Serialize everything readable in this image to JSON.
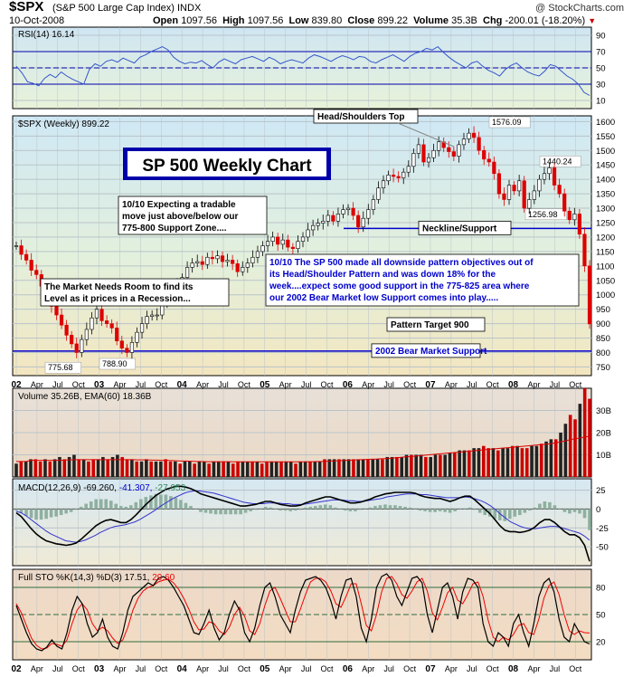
{
  "header": {
    "symbol": "$SPX",
    "name": "(S&P 500 Large Cap Index) INDX",
    "date": "10-Oct-2008",
    "open_label": "Open",
    "open": "1097.56",
    "high_label": "High",
    "high": "1097.56",
    "low_label": "Low",
    "low": "839.80",
    "close_label": "Close",
    "close": "899.22",
    "volume_label": "Volume",
    "volume": "35.3B",
    "chg_label": "Chg",
    "chg": "-200.01 (-18.20%)",
    "brand": "@ StockCharts.com",
    "down_color": "#cc0000"
  },
  "chart_data": [
    {
      "panel": "rsi",
      "type": "line",
      "title": "RSI(14) 16.14",
      "y_ticks": [
        10,
        30,
        50,
        70,
        90
      ],
      "ylim": [
        0,
        100
      ],
      "reference_lines": [
        30,
        50,
        70
      ],
      "series": [
        {
          "values": [
            52,
            44,
            33,
            31,
            28,
            37,
            42,
            38,
            45,
            40,
            36,
            33,
            30,
            48,
            55,
            52,
            58,
            60,
            57,
            62,
            59,
            56,
            63,
            66,
            70,
            73,
            76,
            72,
            63,
            58,
            55,
            57,
            56,
            59,
            54,
            50,
            57,
            61,
            58,
            55,
            60,
            62,
            64,
            61,
            58,
            63,
            60,
            55,
            58,
            60,
            58,
            56,
            62,
            66,
            64,
            61,
            58,
            62,
            65,
            63,
            60,
            64,
            63,
            58,
            56,
            60,
            63,
            66,
            62,
            58,
            64,
            68,
            70,
            74,
            72,
            76,
            69,
            63,
            58,
            54,
            50,
            56,
            58,
            52,
            47,
            44,
            40,
            48,
            53,
            56,
            50,
            45,
            42,
            40,
            46,
            54,
            52,
            46,
            40,
            36,
            30,
            20,
            16.14
          ]
        }
      ],
      "color": "#3355cc"
    },
    {
      "panel": "price",
      "type": "candlestick",
      "title": "$SPX (Weekly) 899.22",
      "y_ticks": [
        750,
        800,
        850,
        900,
        950,
        1000,
        1050,
        1100,
        1150,
        1200,
        1250,
        1300,
        1350,
        1400,
        1450,
        1500,
        1550,
        1600
      ],
      "ylim": [
        720,
        1620
      ],
      "close": [
        1170,
        1140,
        1120,
        1085,
        1070,
        1030,
        990,
        960,
        930,
        895,
        860,
        830,
        800,
        845,
        880,
        920,
        950,
        910,
        900,
        885,
        840,
        815,
        800,
        835,
        870,
        900,
        925,
        930,
        930,
        975,
        1000,
        1030,
        1040,
        1060,
        1095,
        1110,
        1115,
        1105,
        1130,
        1125,
        1135,
        1115,
        1120,
        1108,
        1080,
        1095,
        1110,
        1130,
        1150,
        1170,
        1185,
        1200,
        1175,
        1190,
        1165,
        1160,
        1185,
        1200,
        1225,
        1240,
        1248,
        1255,
        1275,
        1255,
        1280,
        1295,
        1300,
        1275,
        1235,
        1265,
        1295,
        1330,
        1370,
        1395,
        1415,
        1410,
        1405,
        1425,
        1445,
        1490,
        1520,
        1460,
        1475,
        1500,
        1530,
        1510,
        1496,
        1480,
        1520,
        1540,
        1560,
        1545,
        1500,
        1470,
        1460,
        1420,
        1350,
        1330,
        1380,
        1360,
        1395,
        1300,
        1330,
        1360,
        1400,
        1420,
        1440,
        1380,
        1350,
        1290,
        1260,
        1280,
        1210,
        1100,
        899.22
      ],
      "annotations_points": [
        {
          "text": "775.68",
          "value": 775.68
        },
        {
          "text": "788.90",
          "value": 788.9
        },
        {
          "text": "1576.09",
          "value": 1576.09
        },
        {
          "text": "1440.24",
          "value": 1440.24
        },
        {
          "text": "1256.98",
          "value": 1256.98
        }
      ],
      "reference_lines": [
        {
          "label": "Neckline/Support",
          "value": 1230,
          "color": "#0000cc"
        },
        {
          "label": "2002 Bear Market Support",
          "value": 805,
          "color": "#0000cc"
        }
      ],
      "annotations": {
        "chart_title": "SP 500 Weekly Chart",
        "head_shoulders": "Head/Shoulders Top",
        "note1_line1": "10/10  Expecting a tradable",
        "note1_line2": "move just above/below our",
        "note1_line3": "775-800 Support Zone....",
        "note2_line1": "The Market Needs Room to find its",
        "note2_line2": "Level as it prices in a Recession...",
        "note3_line1": "10/10  The SP 500 made all downside pattern objectives out of",
        "note3_line2": "its Head/Shoulder Pattern and was down 18% for the",
        "note3_line3": "week....expect some good support in the 775-825 area where",
        "note3_line4": "our 2002 Bear Market low Support comes into play.....",
        "pattern_target": "Pattern Target 900"
      },
      "up_color": "#000000",
      "down_color": "#dd0000"
    },
    {
      "panel": "volume",
      "type": "bar",
      "title": "Volume 35.26B, EMA(60) 18.36B",
      "y_ticks": [
        "10B",
        "20B",
        "30B"
      ],
      "y_tick_values": [
        10,
        20,
        30
      ],
      "ylim": [
        0,
        40
      ],
      "values": [
        6,
        7,
        7,
        8,
        8,
        7,
        8,
        7,
        8,
        9,
        8,
        9,
        10,
        8,
        8,
        7,
        8,
        8,
        9,
        8,
        9,
        10,
        9,
        8,
        8,
        7,
        7,
        8,
        7,
        7,
        7,
        8,
        7,
        7,
        6,
        7,
        7,
        6,
        7,
        7,
        6,
        7,
        7,
        7,
        7,
        6,
        7,
        7,
        7,
        7,
        7,
        6,
        7,
        7,
        7,
        7,
        7,
        7,
        6,
        7,
        7,
        7,
        7,
        7,
        8,
        8,
        8,
        8,
        8,
        8,
        8,
        8,
        8,
        8,
        8,
        8,
        8,
        9,
        9,
        9,
        9,
        10,
        10,
        10,
        10,
        9,
        9,
        10,
        10,
        10,
        11,
        11,
        12,
        12,
        12,
        13,
        13,
        14,
        13,
        13,
        12,
        13,
        13,
        14,
        14,
        13,
        13,
        14,
        14,
        15,
        16,
        17,
        17,
        20,
        24,
        28,
        26,
        33,
        40,
        35.26
      ],
      "ema": [
        7,
        7,
        7,
        7.5,
        7.5,
        7.5,
        7.5,
        7.5,
        7.5,
        7.5,
        7.6,
        7.7,
        7.8,
        7.8,
        7.8,
        7.8,
        7.8,
        7.8,
        7.8,
        7.8,
        7.8,
        7.8,
        7.8,
        7.8,
        7.8,
        7.7,
        7.7,
        7.7,
        7.6,
        7.6,
        7.5,
        7.5,
        7.4,
        7.3,
        7.2,
        7.2,
        7.1,
        7.0,
        7.0,
        6.9,
        6.9,
        6.9,
        6.9,
        6.9,
        6.9,
        6.8,
        6.8,
        6.8,
        6.8,
        6.8,
        6.8,
        6.8,
        6.8,
        6.8,
        6.8,
        6.8,
        6.8,
        6.8,
        6.8,
        6.8,
        6.9,
        6.9,
        7.0,
        7.0,
        7.1,
        7.2,
        7.3,
        7.4,
        7.5,
        7.6,
        7.7,
        7.8,
        7.9,
        8.0,
        8.1,
        8.2,
        8.3,
        8.4,
        8.6,
        8.8,
        9.0,
        9.2,
        9.4,
        9.6,
        9.8,
        10.0,
        10.2,
        10.4,
        10.6,
        10.8,
        11.0,
        11.2,
        11.4,
        11.6,
        11.8,
        12.0,
        12.2,
        12.4,
        12.6,
        12.8,
        13.0,
        13.2,
        13.4,
        13.6,
        13.8,
        14.0,
        14.2,
        14.4,
        14.6,
        14.8,
        15.0,
        15.4,
        15.8,
        16.2,
        16.8,
        17.2,
        17.6,
        18.0,
        18.36
      ]
    },
    {
      "panel": "macd",
      "type": "line",
      "title": "MACD(12,26,9) -69.260, -41.307, -27.953",
      "legend_macd": "MACD(12,26,9) -69.260,",
      "legend_signal": "-41.307,",
      "legend_hist": "-27.953",
      "signal_color": "#0000cc",
      "hist_color": "#2e8b57",
      "y_ticks": [
        -50,
        -25,
        0,
        25
      ],
      "ylim": [
        -75,
        40
      ],
      "macd": [
        -5,
        -10,
        -18,
        -26,
        -33,
        -38,
        -42,
        -44,
        -46,
        -47,
        -48,
        -47,
        -45,
        -40,
        -34,
        -28,
        -22,
        -18,
        -15,
        -14,
        -16,
        -18,
        -18,
        -14,
        -8,
        -1,
        6,
        12,
        18,
        22,
        26,
        28,
        30,
        30,
        29,
        27,
        24,
        20,
        18,
        16,
        14,
        12,
        10,
        8,
        6,
        4,
        4,
        5,
        6,
        8,
        10,
        10,
        8,
        6,
        5,
        4,
        4,
        5,
        8,
        10,
        12,
        14,
        16,
        16,
        14,
        12,
        10,
        8,
        8,
        9,
        11,
        13,
        16,
        18,
        20,
        21,
        22,
        22,
        22,
        22,
        21,
        18,
        16,
        15,
        14,
        14,
        12,
        10,
        12,
        15,
        17,
        17,
        12,
        6,
        0,
        -6,
        -14,
        -22,
        -28,
        -30,
        -30,
        -31,
        -30,
        -28,
        -24,
        -18,
        -14,
        -14,
        -18,
        -24,
        -30,
        -34,
        -34,
        -38,
        -48,
        -69.26
      ],
      "signal": [
        -3,
        -5,
        -9,
        -14,
        -19,
        -24,
        -29,
        -33,
        -36,
        -39,
        -42,
        -43,
        -44,
        -43,
        -41,
        -38,
        -35,
        -31,
        -28,
        -25,
        -23,
        -22,
        -21,
        -19,
        -17,
        -14,
        -10,
        -6,
        -2,
        3,
        7,
        11,
        15,
        18,
        21,
        23,
        24,
        24,
        23,
        22,
        21,
        19,
        17,
        15,
        13,
        11,
        9,
        8,
        7,
        7,
        7,
        8,
        8,
        8,
        7,
        7,
        6,
        6,
        6,
        7,
        8,
        9,
        10,
        11,
        12,
        12,
        12,
        11,
        11,
        10,
        10,
        11,
        12,
        13,
        14,
        16,
        17,
        18,
        19,
        20,
        20,
        20,
        19,
        19,
        18,
        17,
        16,
        15,
        15,
        15,
        15,
        16,
        15,
        13,
        11,
        8,
        4,
        -1,
        -7,
        -12,
        -17,
        -20,
        -23,
        -25,
        -26,
        -26,
        -25,
        -24,
        -23,
        -23,
        -24,
        -26,
        -28,
        -30,
        -32,
        -36,
        -41.31
      ],
      "histogram": [
        -2,
        -5,
        -9,
        -12,
        -14,
        -14,
        -13,
        -11,
        -10,
        -8,
        -6,
        -4,
        -1,
        3,
        7,
        10,
        13,
        13,
        13,
        11,
        7,
        4,
        3,
        5,
        9,
        13,
        16,
        18,
        20,
        19,
        19,
        17,
        15,
        12,
        8,
        4,
        0,
        -4,
        -5,
        -6,
        -7,
        -7,
        -7,
        -7,
        -7,
        -7,
        -5,
        -3,
        -1,
        1,
        3,
        2,
        0,
        -2,
        -2,
        -3,
        -2,
        -1,
        2,
        3,
        4,
        5,
        6,
        5,
        2,
        0,
        -2,
        -3,
        -3,
        -1,
        1,
        2,
        4,
        5,
        6,
        5,
        5,
        4,
        3,
        2,
        1,
        -2,
        -3,
        -4,
        -4,
        -3,
        -4,
        -5,
        -3,
        0,
        1,
        2,
        -1,
        -5,
        -8,
        -10,
        -13,
        -15,
        -16,
        -13,
        -10,
        -8,
        -5,
        -2,
        2,
        7,
        10,
        9,
        5,
        0,
        -4,
        -6,
        -4,
        -6,
        -12,
        -27.95
      ]
    },
    {
      "panel": "stochastic",
      "type": "line",
      "title": "Full STO %K(14,3) %D(3) 17.51, 29.60",
      "legend_k": "Full STO %K(14,3) %D(3) 17.51,",
      "legend_d": "29.60",
      "d_color": "#ee0000",
      "y_ticks": [
        20,
        50,
        80
      ],
      "ylim": [
        0,
        100
      ],
      "reference_lines": [
        20,
        50,
        80
      ],
      "k": [
        60,
        45,
        30,
        18,
        12,
        10,
        14,
        22,
        15,
        12,
        30,
        55,
        70,
        62,
        40,
        25,
        30,
        45,
        25,
        15,
        12,
        30,
        55,
        70,
        75,
        80,
        85,
        82,
        90,
        92,
        88,
        80,
        70,
        60,
        45,
        30,
        28,
        40,
        55,
        35,
        22,
        30,
        50,
        65,
        55,
        30,
        20,
        35,
        60,
        80,
        85,
        70,
        50,
        40,
        30,
        55,
        75,
        88,
        90,
        92,
        88,
        80,
        65,
        45,
        70,
        88,
        90,
        70,
        35,
        20,
        45,
        80,
        92,
        95,
        88,
        70,
        60,
        75,
        90,
        92,
        85,
        50,
        30,
        55,
        80,
        85,
        70,
        45,
        75,
        90,
        88,
        80,
        40,
        20,
        15,
        30,
        25,
        15,
        40,
        50,
        30,
        15,
        40,
        70,
        85,
        90,
        75,
        45,
        25,
        20,
        40,
        30,
        20,
        17.51
      ],
      "d": [
        62,
        52,
        38,
        24,
        16,
        12,
        13,
        18,
        17,
        15,
        22,
        40,
        55,
        62,
        55,
        40,
        32,
        36,
        32,
        24,
        18,
        22,
        36,
        55,
        68,
        76,
        80,
        82,
        86,
        88,
        89,
        85,
        78,
        68,
        56,
        42,
        33,
        34,
        42,
        40,
        32,
        28,
        36,
        50,
        58,
        48,
        32,
        28,
        40,
        60,
        76,
        80,
        68,
        55,
        42,
        42,
        56,
        72,
        86,
        90,
        90,
        86,
        76,
        62,
        58,
        70,
        84,
        84,
        62,
        38,
        32,
        50,
        75,
        90,
        92,
        84,
        72,
        68,
        76,
        86,
        90,
        76,
        52,
        44,
        58,
        74,
        80,
        66,
        62,
        72,
        84,
        86,
        70,
        44,
        25,
        20,
        25,
        22,
        28,
        38,
        40,
        30,
        28,
        45,
        68,
        82,
        86,
        72,
        50,
        32,
        28,
        32,
        30,
        29.6
      ],
      "k_color": "#000000"
    }
  ],
  "x_axis": {
    "labels": [
      "02",
      "Apr",
      "Jul",
      "Oct",
      "03",
      "Apr",
      "Jul",
      "Oct",
      "04",
      "Apr",
      "Jul",
      "Oct",
      "05",
      "Apr",
      "Jul",
      "Oct",
      "06",
      "Apr",
      "Jul",
      "Oct",
      "07",
      "Apr",
      "Jul",
      "Oct",
      "08",
      "Apr",
      "Jul",
      "Oct"
    ],
    "years": [
      "02",
      "03",
      "04",
      "05",
      "06",
      "07",
      "08"
    ]
  }
}
